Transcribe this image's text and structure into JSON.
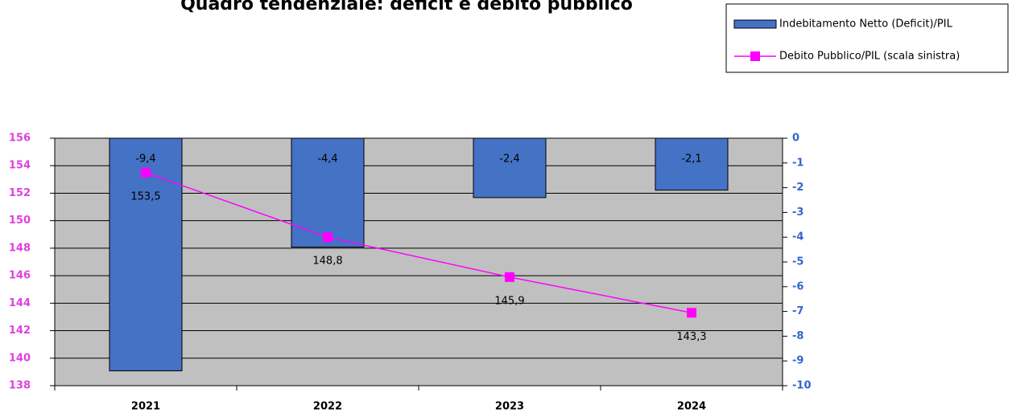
{
  "chart_data": {
    "type": "bar",
    "title": "Quadro tendenziale: deficit e debito pubblico",
    "categories": [
      "2021",
      "2022",
      "2023",
      "2024"
    ],
    "series": [
      {
        "name": "Indebitamento Netto (Deficit)/PIL",
        "type": "bar",
        "axis": "y2",
        "color": "#4472c4",
        "values": [
          -9.4,
          -4.4,
          -2.4,
          -2.1
        ],
        "value_labels": [
          "-9,4",
          "-4,4",
          "-2,4",
          "-2,1"
        ]
      },
      {
        "name": "Debito Pubblico/PIL  (scala sinistra)",
        "type": "line",
        "color": "#ff00ff",
        "values": [
          153.5,
          148.8,
          145.9,
          143.3
        ],
        "value_labels": [
          "153,5",
          "148,8",
          "145,9",
          "143,3"
        ]
      }
    ],
    "ylim": [
      138,
      156
    ],
    "yticks": [
      138,
      140,
      142,
      144,
      146,
      148,
      150,
      152,
      154,
      156
    ],
    "y2lim": [
      -10,
      0
    ],
    "y2ticks": [
      0,
      -1,
      -2,
      -3,
      -4,
      -5,
      -6,
      -7,
      -8,
      -9,
      -10
    ],
    "grid": true,
    "legend": "top-right"
  }
}
